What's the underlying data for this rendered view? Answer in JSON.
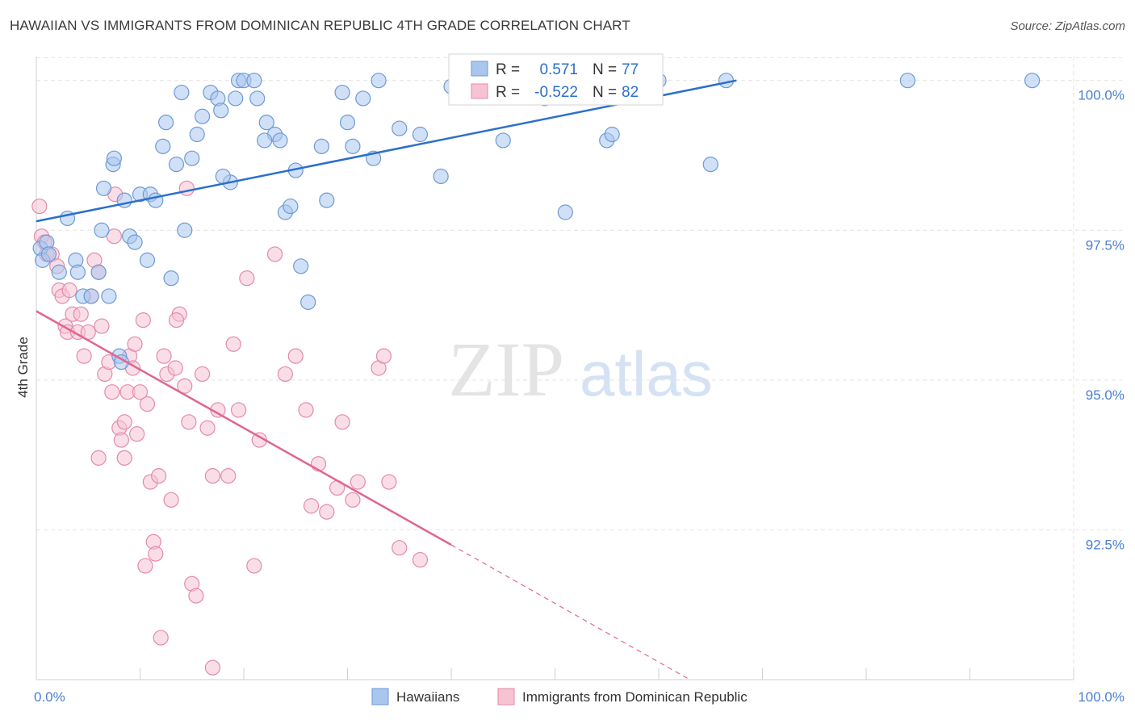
{
  "header": {
    "title": "HAWAIIAN VS IMMIGRANTS FROM DOMINICAN REPUBLIC 4TH GRADE CORRELATION CHART",
    "source": "Source: ZipAtlas.com"
  },
  "watermark": {
    "zip": "ZIP",
    "atlas": "atlas"
  },
  "colors": {
    "blue_fill": "#a9c6ee",
    "blue_stroke": "#6d9ad6",
    "blue_line": "#2b6fcc",
    "pink_fill": "#f6c3d3",
    "pink_stroke": "#e48aa8",
    "pink_line": "#e06592",
    "tick_text": "#4a7fd0",
    "grid": "#e3e3e3"
  },
  "stats_box": {
    "rows": [
      {
        "r_label": "R =",
        "r_value": "0.571",
        "n_label": "N =",
        "n_value": "77"
      },
      {
        "r_label": "R =",
        "r_value": "-0.522",
        "n_label": "N =",
        "n_value": "82"
      }
    ]
  },
  "legend": {
    "items": [
      {
        "label": "Hawaiians"
      },
      {
        "label": "Immigrants from Dominican Republic"
      }
    ]
  },
  "chart_data": {
    "type": "scatter",
    "title": "HAWAIIAN VS IMMIGRANTS FROM DOMINICAN REPUBLIC 4TH GRADE CORRELATION CHART",
    "xlabel": "",
    "ylabel": "4th Grade",
    "xlim": [
      0,
      100
    ],
    "ylim": [
      90.0,
      100.4
    ],
    "x_tick_labels": [
      {
        "value": 0,
        "label": "0.0%"
      },
      {
        "value": 100,
        "label": "100.0%"
      }
    ],
    "y_tick_labels": [
      {
        "value": 100.0,
        "label": "100.0%"
      },
      {
        "value": 97.5,
        "label": "97.5%"
      },
      {
        "value": 95.0,
        "label": "95.0%"
      },
      {
        "value": 92.5,
        "label": "92.5%"
      }
    ],
    "grid": true,
    "legend_position": "bottom-center",
    "series": [
      {
        "name": "Hawaiians",
        "color": "#a9c6ee",
        "trend": {
          "x": [
            0,
            67.5
          ],
          "y": [
            97.65,
            100.0
          ]
        },
        "points": [
          [
            0.4,
            97.2
          ],
          [
            0.6,
            97.0
          ],
          [
            1.0,
            97.3
          ],
          [
            1.2,
            97.1
          ],
          [
            2.2,
            96.8
          ],
          [
            3.0,
            97.7
          ],
          [
            3.8,
            97.0
          ],
          [
            4.0,
            96.8
          ],
          [
            4.5,
            96.4
          ],
          [
            5.3,
            96.4
          ],
          [
            6.0,
            96.8
          ],
          [
            6.3,
            97.5
          ],
          [
            7.0,
            96.4
          ],
          [
            8.0,
            95.4
          ],
          [
            8.2,
            95.3
          ],
          [
            7.4,
            98.6
          ],
          [
            7.5,
            98.7
          ],
          [
            8.5,
            98.0
          ],
          [
            9.0,
            97.4
          ],
          [
            10.0,
            98.1
          ],
          [
            11.0,
            98.1
          ],
          [
            10.7,
            97.0
          ],
          [
            12.2,
            98.9
          ],
          [
            12.5,
            99.3
          ],
          [
            13.5,
            98.6
          ],
          [
            14.0,
            99.8
          ],
          [
            14.3,
            97.5
          ],
          [
            15.0,
            98.7
          ],
          [
            15.5,
            99.1
          ],
          [
            16.0,
            99.4
          ],
          [
            16.8,
            99.8
          ],
          [
            17.5,
            99.7
          ],
          [
            17.8,
            99.5
          ],
          [
            18.7,
            98.3
          ],
          [
            19.2,
            99.7
          ],
          [
            19.5,
            100.0
          ],
          [
            20.0,
            100.0
          ],
          [
            21.0,
            100.0
          ],
          [
            21.3,
            99.7
          ],
          [
            22.2,
            99.3
          ],
          [
            23.0,
            99.1
          ],
          [
            23.5,
            99.0
          ],
          [
            24.0,
            97.8
          ],
          [
            24.5,
            97.9
          ],
          [
            25.0,
            98.5
          ],
          [
            25.5,
            96.9
          ],
          [
            26.2,
            96.3
          ],
          [
            27.5,
            98.9
          ],
          [
            28.0,
            98.0
          ],
          [
            29.5,
            99.8
          ],
          [
            30.0,
            99.3
          ],
          [
            30.5,
            98.9
          ],
          [
            31.5,
            99.7
          ],
          [
            32.5,
            98.7
          ],
          [
            33.0,
            100.0
          ],
          [
            35.0,
            99.2
          ],
          [
            37.0,
            99.1
          ],
          [
            39.0,
            98.4
          ],
          [
            40.0,
            99.9
          ],
          [
            43.5,
            100.0
          ],
          [
            45.0,
            99.0
          ],
          [
            47.5,
            99.9
          ],
          [
            49.0,
            99.7
          ],
          [
            51.0,
            97.8
          ],
          [
            55.0,
            99.0
          ],
          [
            55.5,
            99.1
          ],
          [
            60.0,
            100.0
          ],
          [
            65.0,
            98.6
          ],
          [
            66.5,
            100.0
          ],
          [
            84.0,
            100.0
          ],
          [
            96.0,
            100.0
          ],
          [
            9.5,
            97.3
          ],
          [
            13.0,
            96.7
          ],
          [
            6.5,
            98.2
          ],
          [
            11.5,
            98.0
          ],
          [
            18.0,
            98.4
          ],
          [
            22.0,
            99.0
          ]
        ]
      },
      {
        "name": "Immigrants from Dominican Republic",
        "color": "#f6c3d3",
        "trend": {
          "x": [
            0,
            40.0
          ],
          "y": [
            96.15,
            92.25
          ]
        },
        "trend_dashed": {
          "x": [
            40.0,
            63.0
          ],
          "y": [
            92.25,
            90.0
          ]
        },
        "points": [
          [
            0.3,
            97.9
          ],
          [
            0.5,
            97.4
          ],
          [
            0.8,
            97.3
          ],
          [
            1.0,
            97.1
          ],
          [
            1.5,
            97.1
          ],
          [
            2.0,
            96.9
          ],
          [
            2.2,
            96.5
          ],
          [
            2.5,
            96.4
          ],
          [
            2.8,
            95.9
          ],
          [
            3.0,
            95.8
          ],
          [
            3.2,
            96.5
          ],
          [
            3.5,
            96.1
          ],
          [
            4.0,
            95.8
          ],
          [
            4.3,
            96.1
          ],
          [
            4.6,
            95.4
          ],
          [
            5.0,
            95.8
          ],
          [
            5.3,
            96.4
          ],
          [
            5.6,
            97.0
          ],
          [
            6.0,
            96.8
          ],
          [
            6.3,
            95.9
          ],
          [
            6.6,
            95.1
          ],
          [
            7.0,
            95.3
          ],
          [
            7.3,
            94.8
          ],
          [
            7.6,
            98.1
          ],
          [
            8.0,
            94.2
          ],
          [
            8.2,
            94.0
          ],
          [
            8.5,
            94.3
          ],
          [
            8.8,
            94.8
          ],
          [
            9.0,
            95.4
          ],
          [
            9.3,
            95.2
          ],
          [
            9.7,
            94.1
          ],
          [
            10.0,
            94.8
          ],
          [
            10.3,
            96.0
          ],
          [
            10.7,
            94.6
          ],
          [
            11.0,
            93.3
          ],
          [
            11.3,
            92.3
          ],
          [
            11.8,
            93.4
          ],
          [
            12.3,
            95.4
          ],
          [
            12.6,
            95.1
          ],
          [
            13.0,
            93.0
          ],
          [
            13.4,
            95.2
          ],
          [
            13.8,
            96.1
          ],
          [
            14.3,
            94.9
          ],
          [
            14.7,
            94.3
          ],
          [
            15.0,
            91.6
          ],
          [
            15.4,
            91.4
          ],
          [
            16.0,
            95.1
          ],
          [
            16.5,
            94.2
          ],
          [
            17.0,
            93.4
          ],
          [
            17.5,
            94.5
          ],
          [
            18.5,
            93.4
          ],
          [
            19.0,
            95.6
          ],
          [
            19.5,
            94.5
          ],
          [
            20.3,
            96.7
          ],
          [
            21.0,
            91.9
          ],
          [
            21.5,
            94.0
          ],
          [
            23.0,
            97.1
          ],
          [
            24.0,
            95.1
          ],
          [
            25.0,
            95.4
          ],
          [
            26.0,
            94.5
          ],
          [
            26.5,
            92.9
          ],
          [
            27.2,
            93.6
          ],
          [
            28.0,
            92.8
          ],
          [
            29.0,
            93.2
          ],
          [
            29.5,
            94.3
          ],
          [
            30.5,
            93.0
          ],
          [
            31.0,
            93.3
          ],
          [
            33.0,
            95.2
          ],
          [
            33.5,
            95.4
          ],
          [
            34.0,
            93.3
          ],
          [
            35.0,
            92.2
          ],
          [
            37.0,
            92.0
          ],
          [
            8.5,
            93.7
          ],
          [
            6.0,
            93.7
          ],
          [
            11.5,
            92.1
          ],
          [
            12.0,
            90.7
          ],
          [
            10.5,
            91.9
          ],
          [
            13.5,
            96.0
          ],
          [
            17.0,
            90.2
          ],
          [
            9.5,
            95.6
          ],
          [
            14.5,
            98.2
          ],
          [
            7.5,
            97.4
          ]
        ]
      }
    ]
  }
}
